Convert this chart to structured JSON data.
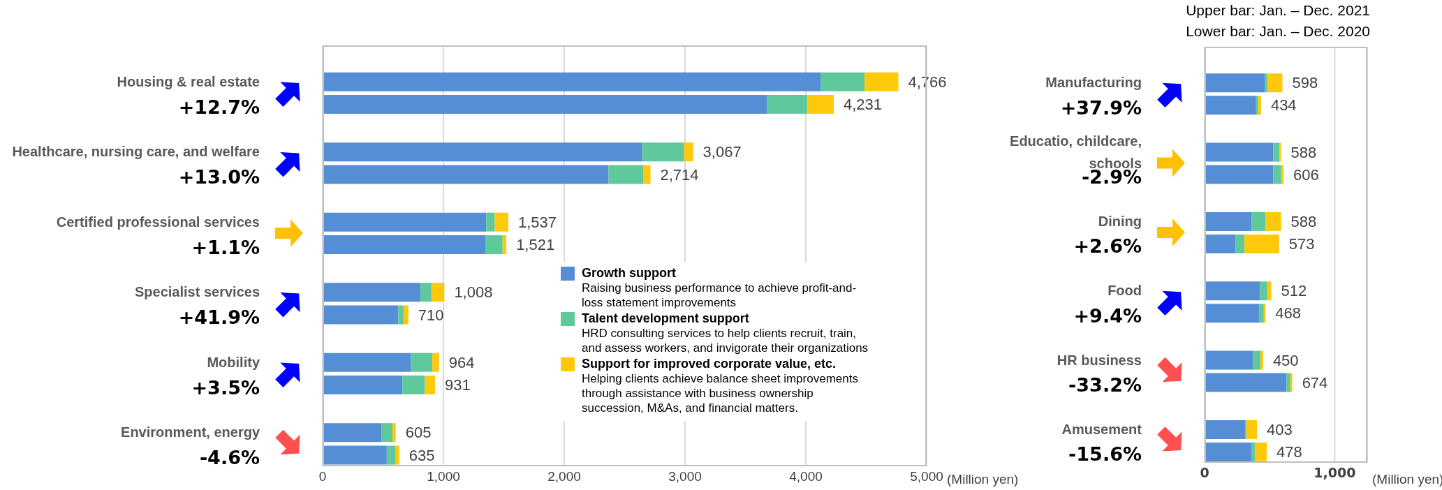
{
  "chart_data": [
    {
      "type": "bar",
      "orientation": "horizontal",
      "stacked": true,
      "xlabel": "(Million yen)",
      "categories": [
        "Housing & real estate",
        "+12.7%",
        "Healthcare, nursing care, and welfare",
        "+13.0%",
        "Certified professional services",
        "+1.1%",
        "Specialist services",
        "+41.9%",
        "Mobility",
        "+3.5%",
        "Environment, energy",
        "-4.6%"
      ],
      "series": [
        {
          "name": "Growth support",
          "color": "#558ed5",
          "values": [
            4122,
            3680,
            2646,
            2367,
            1354,
            1347,
            810,
            626,
            731,
            660,
            486,
            531
          ]
        },
        {
          "name": "Talent development support",
          "color": "#5fc99b",
          "values": [
            364,
            334,
            347,
            286,
            71,
            143,
            91,
            44,
            177,
            187,
            92,
            74
          ]
        },
        {
          "name": "Support for improved corporate value, etc.",
          "color": "#ffc90b",
          "values": [
            280,
            217,
            74,
            61,
            112,
            31,
            107,
            40,
            56,
            84,
            27,
            30
          ]
        }
      ],
      "totals": [
        "4,766",
        "4,231",
        "3,067",
        "2,714",
        "1,537",
        "1,521",
        "1,008",
        "710",
        "964",
        "931",
        "605",
        "635"
      ],
      "xlim": [
        0,
        5000
      ],
      "xticks": [
        {
          "value": 0,
          "label": "0"
        },
        {
          "value": 1000,
          "label": "1,000"
        },
        {
          "value": 2000,
          "label": "2,000"
        },
        {
          "value": 3000,
          "label": "3,000"
        },
        {
          "value": 4000,
          "label": "4,000"
        },
        {
          "value": 5000,
          "label": "5,000"
        }
      ],
      "grid": "x",
      "legend": "bottom right",
      "annotations": [
        "Raising business performance to achieve profit-and-loss statement improvements",
        "HRD consulting services to help clients recruit, train, and assess workers, and invigorate their organizations",
        "Helping clients achieve balance sheet improvements through assistance with business ownership succession, M&As, and financial matters."
      ]
    },
    {
      "type": "bar",
      "orientation": "horizontal",
      "stacked": true,
      "xlabel": "(Million yen)",
      "categories": [
        "Manufacturing",
        "+37.9%",
        "Educatio, childcare, schools",
        "-2.9%",
        "Dining",
        "+2.6%",
        "Food",
        "+9.4%",
        "HR business",
        "-33.2%",
        "Amusement",
        "-15.6%"
      ],
      "series": [
        {
          "color": "#558ed5",
          "values": [
            462,
            396,
            527,
            527,
            362,
            239,
            427,
            418,
            370,
            629,
            311,
            359
          ]
        },
        {
          "color": "#5fc99b",
          "values": [
            20,
            16,
            48,
            62,
            106,
            68,
            55,
            37,
            60,
            30,
            9,
            27
          ]
        },
        {
          "color": "#ffc90b",
          "values": [
            116,
            22,
            13,
            17,
            120,
            266,
            30,
            13,
            20,
            15,
            83,
            92
          ]
        }
      ],
      "totals": [
        "598",
        "434",
        "588",
        "606",
        "588",
        "573",
        "512",
        "468",
        "450",
        "674",
        "403",
        "478"
      ],
      "xlim": [
        0,
        1250
      ],
      "xticks": [
        {
          "value": 0,
          "label": "0"
        },
        {
          "value": 1000,
          "label": "1,000"
        }
      ],
      "grid": "x",
      "annotations": [
        "Upper bar: Jan. – Dec. 2021",
        "Lower bar: Jan. – Dec. 2020"
      ]
    }
  ]
}
